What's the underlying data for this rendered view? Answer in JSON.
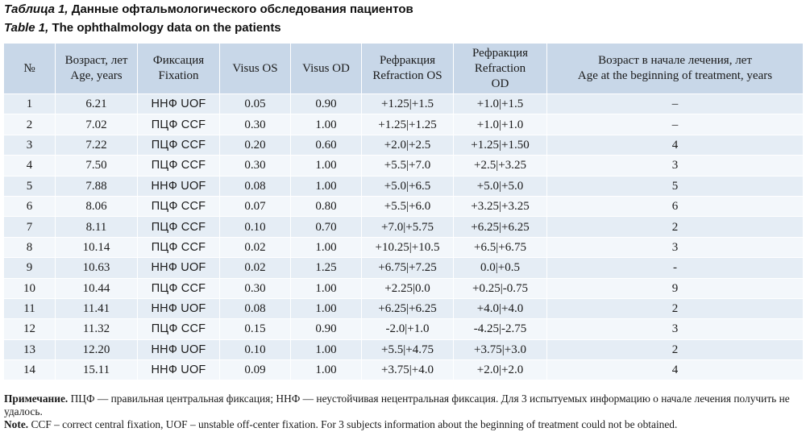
{
  "caption_ru": {
    "lead": "Таблица 1,",
    "text": " Данные офтальмологического обследования пациентов"
  },
  "caption_en": {
    "lead": "Table 1,",
    "text": " The ophthalmology data on the patients"
  },
  "table": {
    "headers": [
      [
        "№"
      ],
      [
        "Возраст, лет",
        "Age, years"
      ],
      [
        "Фиксация",
        "Fixation"
      ],
      [
        "Visus OS"
      ],
      [
        "Visus OD"
      ],
      [
        "Рефракция",
        "Refraction OS"
      ],
      [
        "Рефракция",
        "Refraction",
        "OD"
      ],
      [
        "Возраст в начале лечения, лет",
        "Age at the beginning of treatment, years"
      ]
    ],
    "rows": [
      [
        "1",
        "6.21",
        "ННФ UOF",
        "0.05",
        "0.90",
        "+1.25|+1.5",
        "+1.0|+1.5",
        "–"
      ],
      [
        "2",
        "7.02",
        "ПЦФ CCF",
        "0.30",
        "1.00",
        "+1.25|+1.25",
        "+1.0|+1.0",
        "–"
      ],
      [
        "3",
        "7.22",
        "ПЦФ CCF",
        "0.20",
        "0.60",
        "+2.0|+2.5",
        "+1.25|+1.50",
        "4"
      ],
      [
        "4",
        "7.50",
        "ПЦФ CCF",
        "0.30",
        "1.00",
        "+5.5|+7.0",
        "+2.5|+3.25",
        "3"
      ],
      [
        "5",
        "7.88",
        "ННФ UOF",
        "0.08",
        "1.00",
        "+5.0|+6.5",
        "+5.0|+5.0",
        "5"
      ],
      [
        "6",
        "8.06",
        "ПЦФ CCF",
        "0.07",
        "0.80",
        "+5.5|+6.0",
        "+3.25|+3.25",
        "6"
      ],
      [
        "7",
        "8.11",
        "ПЦФ CCF",
        "0.10",
        "0.70",
        "+7.0|+5.75",
        "+6.25|+6.25",
        "2"
      ],
      [
        "8",
        "10.14",
        "ПЦФ CCF",
        "0.02",
        "1.00",
        "+10.25|+10.5",
        "+6.5|+6.75",
        "3"
      ],
      [
        "9",
        "10.63",
        "ННФ UOF",
        "0.02",
        "1.25",
        "+6.75|+7.25",
        "0.0|+0.5",
        "-"
      ],
      [
        "10",
        "10.44",
        "ПЦФ CCF",
        "0.30",
        "1.00",
        "+2.25|0.0",
        "+0.25|-0.75",
        "9"
      ],
      [
        "11",
        "11.41",
        "ННФ UOF",
        "0.08",
        "1.00",
        "+6.25|+6.25",
        "+4.0|+4.0",
        "2"
      ],
      [
        "12",
        "11.32",
        "ПЦФ CCF",
        "0.15",
        "0.90",
        "-2.0|+1.0",
        "-4.25|-2.75",
        "3"
      ],
      [
        "13",
        "12.20",
        "ННФ UOF",
        "0.10",
        "1.00",
        "+5.5|+4.75",
        "+3.75|+3.0",
        "2"
      ],
      [
        "14",
        "15.11",
        "ННФ UOF",
        "0.09",
        "1.00",
        "+3.75|+4.0",
        "+2.0|+2.0",
        "4"
      ]
    ]
  },
  "note_ru": {
    "label": "Примечание.",
    "text": " ПЦФ — правильная центральная фиксация; ННФ — неустойчивая нецентральная фиксация. Для 3 испытуемых информацию о начале лечения получить не удалось."
  },
  "note_en": {
    "label": "Note.",
    "text": " CCF – correct central fixation, UOF – unstable off-center fixation. For 3 subjects information about the beginning of treatment could not be obtained."
  }
}
